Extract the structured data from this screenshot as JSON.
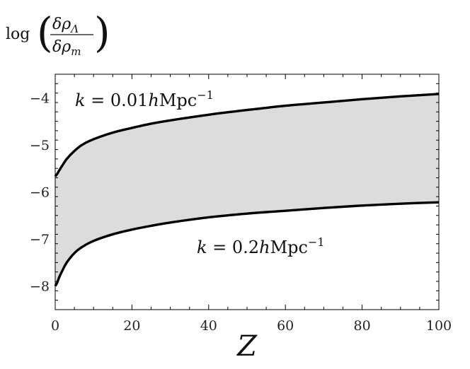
{
  "chart_data": {
    "type": "area",
    "xlabel": "Z",
    "ylabel": {
      "prefix": "log",
      "numerator": "δρ",
      "numerator_sub": "Λ",
      "denominator": "δρ",
      "denominator_sub": "m"
    },
    "xlim": [
      0,
      100
    ],
    "ylim": [
      -8.5,
      -3.5
    ],
    "x_ticks": [
      0,
      20,
      40,
      60,
      80,
      100
    ],
    "x_tick_labels": [
      "0",
      "20",
      "40",
      "60",
      "80",
      "100"
    ],
    "y_ticks": [
      -8,
      -7,
      -6,
      -5,
      -4
    ],
    "y_tick_labels": [
      "−8",
      "−7",
      "−6",
      "−5",
      "−4"
    ],
    "grid": false,
    "fill_color": "#dcdcdc",
    "line_color": "#000000",
    "series": [
      {
        "label": {
          "prefix": "k",
          "eq": " = 0.01",
          "unit_h": "h",
          "unit": "Mpc",
          "sup": "−1"
        },
        "x": [
          0,
          0.5,
          1,
          2,
          3,
          5,
          7,
          10,
          15,
          20,
          25,
          30,
          40,
          50,
          60,
          70,
          80,
          90,
          100
        ],
        "y": [
          -5.67,
          -5.62,
          -5.55,
          -5.42,
          -5.3,
          -5.13,
          -5.0,
          -4.88,
          -4.74,
          -4.64,
          -4.55,
          -4.48,
          -4.36,
          -4.26,
          -4.17,
          -4.1,
          -4.03,
          -3.97,
          -3.92
        ]
      },
      {
        "label": {
          "prefix": "k",
          "eq": " = 0.2",
          "unit_h": "h",
          "unit": "Mpc",
          "sup": "−1"
        },
        "x": [
          0,
          0.5,
          1,
          2,
          3,
          5,
          7,
          10,
          15,
          20,
          25,
          30,
          40,
          50,
          60,
          70,
          80,
          90,
          100
        ],
        "y": [
          -8.0,
          -7.93,
          -7.82,
          -7.65,
          -7.5,
          -7.3,
          -7.17,
          -7.04,
          -6.9,
          -6.8,
          -6.72,
          -6.65,
          -6.54,
          -6.46,
          -6.4,
          -6.34,
          -6.29,
          -6.25,
          -6.22
        ]
      }
    ]
  }
}
